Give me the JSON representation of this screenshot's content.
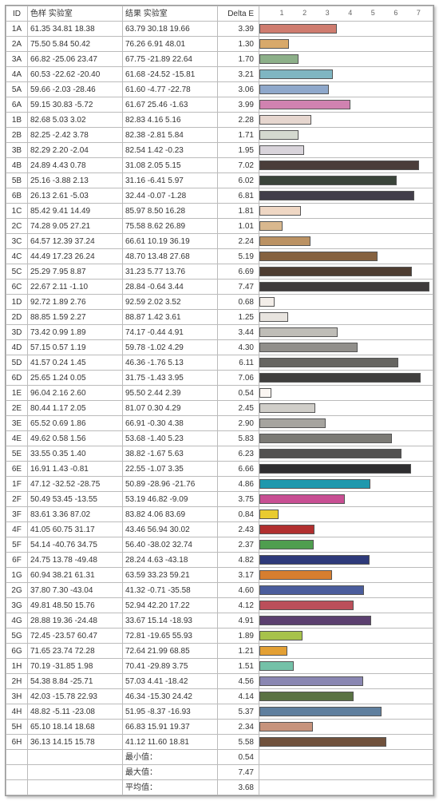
{
  "headers": {
    "id": "ID",
    "lab": "色样 实验室",
    "res": "结果 实验室",
    "delta": "Delta E"
  },
  "chart": {
    "xmin": 0,
    "xmax": 7.6,
    "ticks": [
      1,
      2,
      3,
      4,
      5,
      6,
      7
    ],
    "bar_border": "#555555",
    "grid_color": "#bbbbbb",
    "label_fontsize": 9
  },
  "rows": [
    {
      "id": "1A",
      "lab": "61.35 34.81 18.38",
      "res": "63.79 30.18 19.66",
      "de": "3.39",
      "v": 3.39,
      "c": "#cf7c6f"
    },
    {
      "id": "2A",
      "lab": "75.50  5.84 50.42",
      "res": "76.26  6.91 48.01",
      "de": "1.30",
      "v": 1.3,
      "c": "#d8a96a"
    },
    {
      "id": "3A",
      "lab": "66.82 -25.06 23.47",
      "res": "67.75 -21.89 22.64",
      "de": "1.70",
      "v": 1.7,
      "c": "#8db089"
    },
    {
      "id": "4A",
      "lab": "60.53 -22.62 -20.40",
      "res": "61.68 -24.52 -15.81",
      "de": "3.21",
      "v": 3.21,
      "c": "#7fb6c2"
    },
    {
      "id": "5A",
      "lab": "59.66  -2.03 -28.46",
      "res": "61.60  -4.77 -22.78",
      "de": "3.06",
      "v": 3.06,
      "c": "#8fa8cb"
    },
    {
      "id": "6A",
      "lab": "59.15 30.83  -5.72",
      "res": "61.67 25.46  -1.63",
      "de": "3.99",
      "v": 3.99,
      "c": "#d082b0"
    },
    {
      "id": "1B",
      "lab": "82.68  5.03   3.02",
      "res": "82.83  4.16   5.16",
      "de": "2.28",
      "v": 2.28,
      "c": "#e6d6cf"
    },
    {
      "id": "2B",
      "lab": "82.25  -2.42  3.78",
      "res": "82.38  -2.81  5.84",
      "de": "1.71",
      "v": 1.71,
      "c": "#d4d9cf"
    },
    {
      "id": "3B",
      "lab": "82.29   2.20 -2.04",
      "res": "82.54  1.42  -0.23",
      "de": "1.95",
      "v": 1.95,
      "c": "#d9d4db"
    },
    {
      "id": "4B",
      "lab": "24.89   4.43  0.78",
      "res": "31.08  2.05   5.15",
      "de": "7.02",
      "v": 7.02,
      "c": "#4a3d3a"
    },
    {
      "id": "5B",
      "lab": "25.16  -3.88  2.13",
      "res": "31.16 -6.41   5.97",
      "de": "6.02",
      "v": 6.02,
      "c": "#3a443a"
    },
    {
      "id": "6B",
      "lab": "26.13   2.61 -5.03",
      "res": "32.44 -0.07  -1.28",
      "de": "6.81",
      "v": 6.81,
      "c": "#423e4a"
    },
    {
      "id": "1C",
      "lab": "85.42   9.41 14.49",
      "res": "85.97  8.50 16.28",
      "de": "1.81",
      "v": 1.81,
      "c": "#efd7c4"
    },
    {
      "id": "2C",
      "lab": "74.28   9.05 27.21",
      "res": "75.58  8.62 26.89",
      "de": "1.01",
      "v": 1.01,
      "c": "#d9b88e"
    },
    {
      "id": "3C",
      "lab": "64.57 12.39 37.24",
      "res": "66.61 10.19 36.19",
      "de": "2.24",
      "v": 2.24,
      "c": "#bb9263"
    },
    {
      "id": "4C",
      "lab": "44.49 17.23 26.24",
      "res": "48.70 13.48 27.68",
      "de": "5.19",
      "v": 5.19,
      "c": "#85613f"
    },
    {
      "id": "5C",
      "lab": "25.29  7.95   8.87",
      "res": "31.23  5.77 13.76",
      "de": "6.69",
      "v": 6.69,
      "c": "#4e3d32"
    },
    {
      "id": "6C",
      "lab": "22.67  2.11  -1.10",
      "res": "28.84 -0.64  3.44",
      "de": "7.47",
      "v": 7.47,
      "c": "#3e3a3b"
    },
    {
      "id": "1D",
      "lab": "92.72  1.89   2.76",
      "res": "92.59  2.02  3.52",
      "de": "0.68",
      "v": 0.68,
      "c": "#f3eee9"
    },
    {
      "id": "2D",
      "lab": "88.85  1.59   2.27",
      "res": "88.87  1.42  3.61",
      "de": "1.25",
      "v": 1.25,
      "c": "#e8e4df"
    },
    {
      "id": "3D",
      "lab": "73.42  0.99   1.89",
      "res": "74.17 -0.44  4.91",
      "de": "3.44",
      "v": 3.44,
      "c": "#bfbdb7"
    },
    {
      "id": "4D",
      "lab": "57.15  0.57   1.19",
      "res": "59.78 -1.02  4.29",
      "de": "4.30",
      "v": 4.3,
      "c": "#918f8b"
    },
    {
      "id": "5D",
      "lab": "41.57  0.24   1.45",
      "res": "46.36 -1.76  5.13",
      "de": "6.11",
      "v": 6.11,
      "c": "#666561"
    },
    {
      "id": "6D",
      "lab": "25.65  1.24   0.05",
      "res": "31.75 -1.43  3.95",
      "de": "7.06",
      "v": 7.06,
      "c": "#403f3e"
    },
    {
      "id": "1E",
      "lab": "96.04  2.16   2.60",
      "res": "95.50  2.44  2.39",
      "de": "0.54",
      "v": 0.54,
      "c": "#fbf6f2"
    },
    {
      "id": "2E",
      "lab": "80.44  1.17   2.05",
      "res": "81.07  0.30  4.29",
      "de": "2.45",
      "v": 2.45,
      "c": "#d0cec9"
    },
    {
      "id": "3E",
      "lab": "65.52  0.69   1.86",
      "res": "66.91 -0.30  4.38",
      "de": "2.90",
      "v": 2.9,
      "c": "#a6a49f"
    },
    {
      "id": "4E",
      "lab": "49.62  0.58   1.56",
      "res": "53.68 -1.40  5.23",
      "de": "5.83",
      "v": 5.83,
      "c": "#7b7a75"
    },
    {
      "id": "5E",
      "lab": "33.55  0.35   1.40",
      "res": "38.82 -1.67  5.63",
      "de": "6.23",
      "v": 6.23,
      "c": "#525150"
    },
    {
      "id": "6E",
      "lab": "16.91  1.43  -0.81",
      "res": "22.55 -1.07  3.35",
      "de": "6.66",
      "v": 6.66,
      "c": "#2f2e30"
    },
    {
      "id": "1F",
      "lab": "47.12 -32.52 -28.75",
      "res": "50.89 -28.96 -21.76",
      "de": "4.86",
      "v": 4.86,
      "c": "#1e98ad"
    },
    {
      "id": "2F",
      "lab": "50.49 53.45 -13.55",
      "res": "53.19 46.82  -9.09",
      "de": "3.75",
      "v": 3.75,
      "c": "#c84f93"
    },
    {
      "id": "3F",
      "lab": "83.61  3.36  87.02",
      "res": "83.82  4.06 83.69",
      "de": "0.84",
      "v": 0.84,
      "c": "#e9cb2f"
    },
    {
      "id": "4F",
      "lab": "41.05 60.75 31.17",
      "res": "43.46 56.94 30.02",
      "de": "2.43",
      "v": 2.43,
      "c": "#b12f2f"
    },
    {
      "id": "5F",
      "lab": "54.14 -40.76 34.75",
      "res": "56.40 -38.02 32.74",
      "de": "2.37",
      "v": 2.37,
      "c": "#4f9e4f"
    },
    {
      "id": "6F",
      "lab": "24.75 13.78 -49.48",
      "res": "28.24  4.63 -43.18",
      "de": "4.82",
      "v": 4.82,
      "c": "#2e3a7a"
    },
    {
      "id": "1G",
      "lab": "60.94 38.21 61.31",
      "res": "63.59 33.23 59.21",
      "de": "3.17",
      "v": 3.17,
      "c": "#d67e2f"
    },
    {
      "id": "2G",
      "lab": "37.80  7.30 -43.04",
      "res": "41.32 -0.71 -35.58",
      "de": "4.60",
      "v": 4.6,
      "c": "#4b5d9c"
    },
    {
      "id": "3G",
      "lab": "49.81 48.50 15.76",
      "res": "52.94 42.20 17.22",
      "de": "4.12",
      "v": 4.12,
      "c": "#bb4f5a"
    },
    {
      "id": "4G",
      "lab": "28.88 19.36 -24.48",
      "res": "33.67 15.14 -18.93",
      "de": "4.91",
      "v": 4.91,
      "c": "#5b3f6f"
    },
    {
      "id": "5G",
      "lab": "72.45 -23.57 60.47",
      "res": "72.81 -19.65 55.93",
      "de": "1.89",
      "v": 1.89,
      "c": "#a7c24a"
    },
    {
      "id": "6G",
      "lab": "71.65 23.74 72.28",
      "res": "72.64 21.99 68.85",
      "de": "1.21",
      "v": 1.21,
      "c": "#e3a034"
    },
    {
      "id": "1H",
      "lab": "70.19 -31.85  1.98",
      "res": "70.41 -29.89  3.75",
      "de": "1.51",
      "v": 1.51,
      "c": "#74c1a8"
    },
    {
      "id": "2H",
      "lab": "54.38  8.84 -25.71",
      "res": "57.03  4.41 -18.42",
      "de": "4.56",
      "v": 4.56,
      "c": "#8a87b2"
    },
    {
      "id": "3H",
      "lab": "42.03 -15.78 22.93",
      "res": "46.34 -15.30 24.42",
      "de": "4.14",
      "v": 4.14,
      "c": "#5a7243"
    },
    {
      "id": "4H",
      "lab": "48.82  -5.11 -23.08",
      "res": "51.95  -8.37 -16.93",
      "de": "5.37",
      "v": 5.37,
      "c": "#5f7f9e"
    },
    {
      "id": "5H",
      "lab": "65.10 18.14 18.68",
      "res": "66.83 15.91 19.37",
      "de": "2.34",
      "v": 2.34,
      "c": "#c7937c"
    },
    {
      "id": "6H",
      "lab": "36.13 14.15 15.78",
      "res": "41.12 11.60 18.81",
      "de": "5.58",
      "v": 5.58,
      "c": "#70513c"
    }
  ],
  "summary": [
    {
      "label": "最小值：",
      "value": "0.54"
    },
    {
      "label": "最大值：",
      "value": "7.47"
    },
    {
      "label": "平均值：",
      "value": "3.68"
    }
  ]
}
